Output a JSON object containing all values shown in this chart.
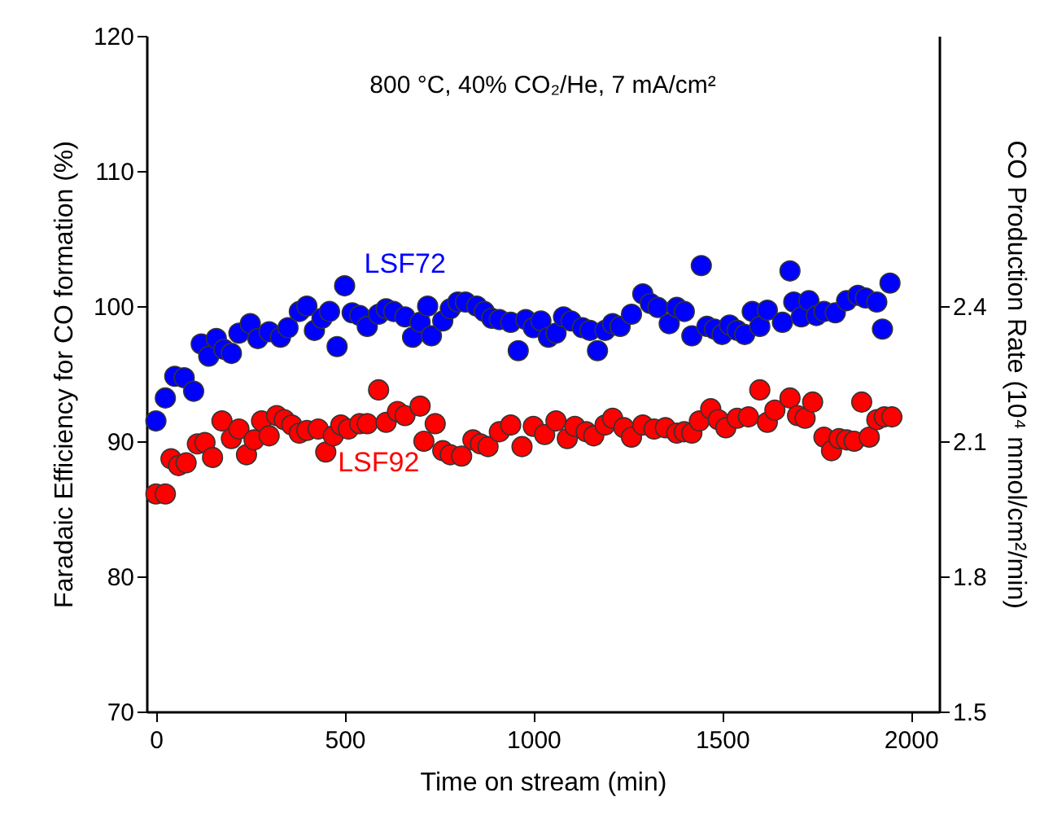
{
  "chart_data": {
    "type": "scatter",
    "xlabel": "Time on stream (min)",
    "ylabel": "Faradaic Efficiency for CO formation (%)",
    "y2label": "CO Production Rate (10⁴ mmol/cm²/min)",
    "annotations": [
      "800 °C, 40% CO₂/He, 7 mA/cm²"
    ],
    "xlim": [
      -25,
      2075
    ],
    "xticks": [
      0,
      500,
      1000,
      1500,
      2000
    ],
    "ylim": [
      70,
      120
    ],
    "yticks": [
      70,
      80,
      90,
      100,
      110,
      120
    ],
    "y2lim": [
      1.5,
      3.0
    ],
    "y2ticks": [
      1.5,
      1.8,
      2.1,
      2.4
    ],
    "marker": "circle",
    "grid": false,
    "legend": false,
    "series": [
      {
        "name": "LSF72",
        "color": "#0000ff",
        "x": [
          0,
          25,
          50,
          75,
          100,
          120,
          140,
          160,
          180,
          200,
          220,
          250,
          270,
          300,
          330,
          350,
          380,
          400,
          420,
          440,
          460,
          480,
          500,
          520,
          540,
          560,
          590,
          610,
          630,
          660,
          680,
          700,
          720,
          730,
          760,
          780,
          800,
          820,
          850,
          870,
          890,
          910,
          940,
          960,
          980,
          1000,
          1020,
          1040,
          1060,
          1080,
          1100,
          1130,
          1150,
          1170,
          1190,
          1210,
          1230,
          1260,
          1290,
          1310,
          1330,
          1360,
          1380,
          1400,
          1420,
          1445,
          1460,
          1480,
          1500,
          1520,
          1540,
          1560,
          1580,
          1600,
          1620,
          1660,
          1680,
          1690,
          1710,
          1730,
          1750,
          1770,
          1800,
          1830,
          1860,
          1880,
          1910,
          1925,
          1945
        ],
        "values": [
          91.5,
          93.2,
          94.8,
          94.7,
          93.7,
          97.2,
          96.3,
          97.6,
          96.8,
          96.5,
          98,
          98.7,
          97.6,
          98.1,
          97.7,
          98.4,
          99.6,
          100,
          98.2,
          99.1,
          99.6,
          97,
          101.5,
          99.5,
          99.3,
          98.5,
          99.4,
          99.8,
          99.6,
          99.2,
          97.7,
          98.8,
          100,
          97.8,
          98.9,
          99.8,
          100.3,
          100.3,
          100,
          99.6,
          99.1,
          99,
          98.8,
          96.7,
          99,
          98.4,
          98.9,
          97.7,
          98,
          99.2,
          98.9,
          98.4,
          98.2,
          96.7,
          98.2,
          98.7,
          98.5,
          99.4,
          100.9,
          100.2,
          99.9,
          98.7,
          99.9,
          99.6,
          97.8,
          103,
          98.5,
          98.3,
          97.9,
          98.6,
          98.2,
          97.9,
          99.6,
          98.5,
          99.7,
          98.8,
          102.6,
          100.3,
          99.2,
          100.4,
          99.3,
          99.6,
          99.5,
          100.4,
          100.8,
          100.6,
          100.3,
          98.3,
          101.7
        ]
      },
      {
        "name": "LSF92",
        "color": "#ff0000",
        "x": [
          0,
          25,
          40,
          60,
          80,
          110,
          130,
          150,
          175,
          200,
          220,
          240,
          260,
          280,
          300,
          320,
          340,
          360,
          380,
          400,
          430,
          450,
          470,
          490,
          510,
          540,
          560,
          590,
          610,
          640,
          660,
          700,
          710,
          740,
          760,
          780,
          810,
          840,
          860,
          880,
          910,
          940,
          970,
          1000,
          1030,
          1060,
          1090,
          1110,
          1140,
          1160,
          1190,
          1210,
          1240,
          1260,
          1290,
          1320,
          1350,
          1380,
          1400,
          1420,
          1440,
          1470,
          1490,
          1510,
          1540,
          1570,
          1600,
          1620,
          1640,
          1680,
          1700,
          1720,
          1740,
          1770,
          1790,
          1810,
          1830,
          1850,
          1870,
          1890,
          1910,
          1930,
          1950
        ],
        "values": [
          86.1,
          86.1,
          88.7,
          88.2,
          88.4,
          89.8,
          89.9,
          88.8,
          91.5,
          90.2,
          90.9,
          89,
          90.1,
          91.5,
          90.4,
          91.9,
          91.6,
          91.2,
          90.6,
          90.8,
          90.9,
          89.2,
          90.4,
          91.2,
          90.9,
          91.3,
          91.3,
          93.8,
          91.4,
          92.2,
          91.9,
          92.6,
          90,
          91.3,
          89.3,
          89,
          88.9,
          90.1,
          89.8,
          89.6,
          90.7,
          91.2,
          89.6,
          91.1,
          90.5,
          91.5,
          90.2,
          91.1,
          90.7,
          90.4,
          91.2,
          91.7,
          91,
          90.3,
          91.2,
          90.9,
          91,
          90.6,
          90.7,
          90.6,
          91.5,
          92.4,
          91.6,
          91,
          91.7,
          91.8,
          93.8,
          91.4,
          92.3,
          93.2,
          91.9,
          91.7,
          92.9,
          90.3,
          89.3,
          90.2,
          90.1,
          90,
          92.9,
          90.3,
          91.6,
          91.8,
          91.8
        ]
      }
    ]
  }
}
